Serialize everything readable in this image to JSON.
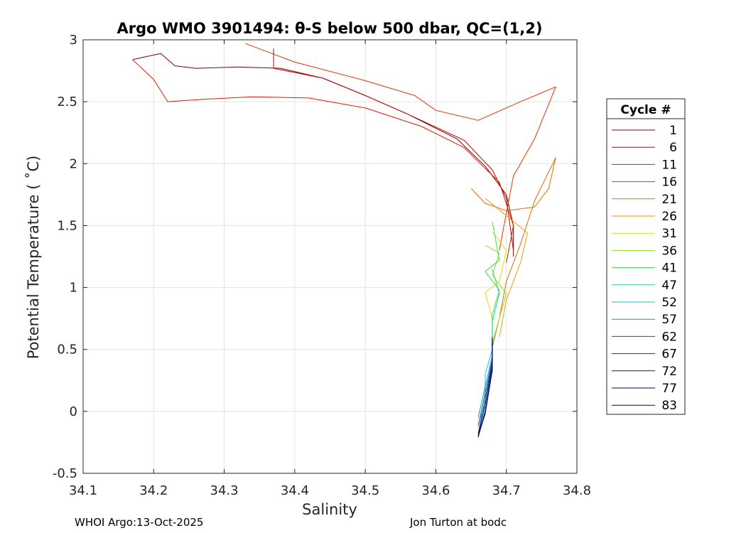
{
  "chart_data": {
    "type": "line",
    "title": "Argo WMO 3901494: θ-S below 500 dbar,  QC=(1,2)",
    "xlabel": "Salinity",
    "ylabel": "Potential Temperature ( ˚C)",
    "xlim": [
      34.1,
      34.8
    ],
    "ylim": [
      -0.5,
      3
    ],
    "xticks": [
      34.1,
      34.2,
      34.3,
      34.4,
      34.5,
      34.6,
      34.7,
      34.8
    ],
    "yticks": [
      -0.5,
      0,
      0.5,
      1,
      1.5,
      2,
      2.5,
      3
    ],
    "xtick_labels": [
      "34.1",
      "34.2",
      "34.3",
      "34.4",
      "34.5",
      "34.6",
      "34.7",
      "34.8"
    ],
    "ytick_labels": [
      "-0.5",
      "0",
      "0.5",
      "1",
      "1.5",
      "2",
      "2.5",
      "3"
    ],
    "grid": true,
    "legend_title": "Cycle #",
    "legend_position": "outside-right",
    "series": [
      {
        "name": "1",
        "color": "#800000",
        "points": [
          [
            34.17,
            2.84
          ],
          [
            34.21,
            2.89
          ],
          [
            34.23,
            2.79
          ],
          [
            34.26,
            2.77
          ],
          [
            34.32,
            2.78
          ],
          [
            34.38,
            2.77
          ],
          [
            34.44,
            2.69
          ],
          [
            34.5,
            2.55
          ],
          [
            34.56,
            2.4
          ],
          [
            34.63,
            2.2
          ],
          [
            34.67,
            1.98
          ],
          [
            34.7,
            1.75
          ],
          [
            34.71,
            1.5
          ],
          [
            34.71,
            1.25
          ]
        ]
      },
      {
        "name": "6",
        "color": "#c00000",
        "points": [
          [
            34.37,
            2.93
          ],
          [
            34.37,
            2.77
          ],
          [
            34.44,
            2.69
          ],
          [
            34.5,
            2.55
          ],
          [
            34.56,
            2.4
          ],
          [
            34.64,
            2.19
          ],
          [
            34.68,
            1.95
          ],
          [
            34.7,
            1.72
          ],
          [
            34.71,
            1.3
          ]
        ]
      },
      {
        "name": "11",
        "color": "#dd1c00",
        "points": [
          [
            34.17,
            2.84
          ],
          [
            34.2,
            2.68
          ],
          [
            34.22,
            2.5
          ],
          [
            34.27,
            2.52
          ],
          [
            34.34,
            2.54
          ],
          [
            34.42,
            2.53
          ],
          [
            34.5,
            2.45
          ],
          [
            34.58,
            2.3
          ],
          [
            34.64,
            2.13
          ],
          [
            34.69,
            1.85
          ],
          [
            34.71,
            1.5
          ],
          [
            34.7,
            1.2
          ]
        ]
      },
      {
        "name": "16",
        "color": "#e63200",
        "points": [
          [
            34.33,
            2.97
          ],
          [
            34.4,
            2.82
          ],
          [
            34.5,
            2.67
          ],
          [
            34.57,
            2.55
          ],
          [
            34.6,
            2.43
          ],
          [
            34.66,
            2.35
          ],
          [
            34.72,
            2.5
          ],
          [
            34.77,
            2.62
          ],
          [
            34.74,
            2.2
          ],
          [
            34.71,
            1.9
          ],
          [
            34.7,
            1.6
          ],
          [
            34.69,
            1.3
          ]
        ]
      },
      {
        "name": "21",
        "color": "#e86a00",
        "points": [
          [
            34.65,
            1.8
          ],
          [
            34.67,
            1.68
          ],
          [
            34.7,
            1.62
          ],
          [
            34.74,
            1.65
          ],
          [
            34.76,
            1.8
          ],
          [
            34.77,
            2.05
          ],
          [
            34.74,
            1.7
          ],
          [
            34.72,
            1.35
          ],
          [
            34.7,
            1.05
          ],
          [
            34.69,
            0.75
          ],
          [
            34.68,
            0.52
          ]
        ]
      },
      {
        "name": "26",
        "color": "#e6a100",
        "points": [
          [
            34.67,
            1.72
          ],
          [
            34.7,
            1.58
          ],
          [
            34.73,
            1.44
          ],
          [
            34.72,
            1.2
          ],
          [
            34.7,
            0.9
          ],
          [
            34.69,
            0.6
          ]
        ]
      },
      {
        "name": "31",
        "color": "#e0e000",
        "points": [
          [
            34.68,
            1.45
          ],
          [
            34.7,
            1.3
          ],
          [
            34.69,
            1.05
          ],
          [
            34.67,
            0.96
          ],
          [
            34.68,
            0.75
          ],
          [
            34.68,
            0.55
          ]
        ]
      },
      {
        "name": "36",
        "color": "#8fdf1d",
        "points": [
          [
            34.67,
            1.34
          ],
          [
            34.69,
            1.28
          ],
          [
            34.68,
            1.1
          ],
          [
            34.7,
            0.95
          ],
          [
            34.69,
            0.75
          ],
          [
            34.68,
            0.55
          ]
        ]
      },
      {
        "name": "41",
        "color": "#3cde3c",
        "points": [
          [
            34.68,
            1.53
          ],
          [
            34.69,
            1.22
          ],
          [
            34.67,
            1.13
          ],
          [
            34.69,
            0.98
          ],
          [
            34.68,
            0.78
          ],
          [
            34.68,
            0.5
          ]
        ]
      },
      {
        "name": "47",
        "color": "#2ad58e",
        "points": [
          [
            34.68,
            1.15
          ],
          [
            34.69,
            0.95
          ],
          [
            34.68,
            0.72
          ],
          [
            34.68,
            0.48
          ]
        ]
      },
      {
        "name": "52",
        "color": "#1ec1c1",
        "points": [
          [
            34.68,
            0.62
          ],
          [
            34.68,
            0.5
          ],
          [
            34.67,
            0.3
          ],
          [
            34.67,
            0.05
          ],
          [
            34.66,
            -0.1
          ]
        ]
      },
      {
        "name": "57",
        "color": "#0a9bc2",
        "points": [
          [
            34.68,
            0.58
          ],
          [
            34.68,
            0.45
          ],
          [
            34.67,
            0.2
          ],
          [
            34.66,
            -0.05
          ]
        ]
      },
      {
        "name": "62",
        "color": "#005e9e",
        "points": [
          [
            34.68,
            0.6
          ],
          [
            34.68,
            0.42
          ],
          [
            34.67,
            0.15
          ],
          [
            34.66,
            -0.12
          ]
        ]
      },
      {
        "name": "67",
        "color": "#003a8c",
        "points": [
          [
            34.68,
            0.56
          ],
          [
            34.68,
            0.4
          ],
          [
            34.67,
            0.1
          ],
          [
            34.66,
            -0.18
          ]
        ]
      },
      {
        "name": "72",
        "color": "#001c70",
        "points": [
          [
            34.68,
            0.6
          ],
          [
            34.68,
            0.38
          ],
          [
            34.67,
            0.05
          ],
          [
            34.66,
            -0.2
          ]
        ]
      },
      {
        "name": "77",
        "color": "#000850",
        "points": [
          [
            34.68,
            0.58
          ],
          [
            34.68,
            0.35
          ],
          [
            34.67,
            0.0
          ],
          [
            34.66,
            -0.21
          ]
        ]
      },
      {
        "name": "83",
        "color": "#000066",
        "points": [
          [
            34.68,
            0.55
          ],
          [
            34.68,
            0.33
          ],
          [
            34.67,
            -0.02
          ],
          [
            34.66,
            -0.2
          ]
        ]
      }
    ]
  },
  "footer": {
    "left": "WHOI Argo:13-Oct-2025",
    "right": "Jon Turton at bodc"
  }
}
